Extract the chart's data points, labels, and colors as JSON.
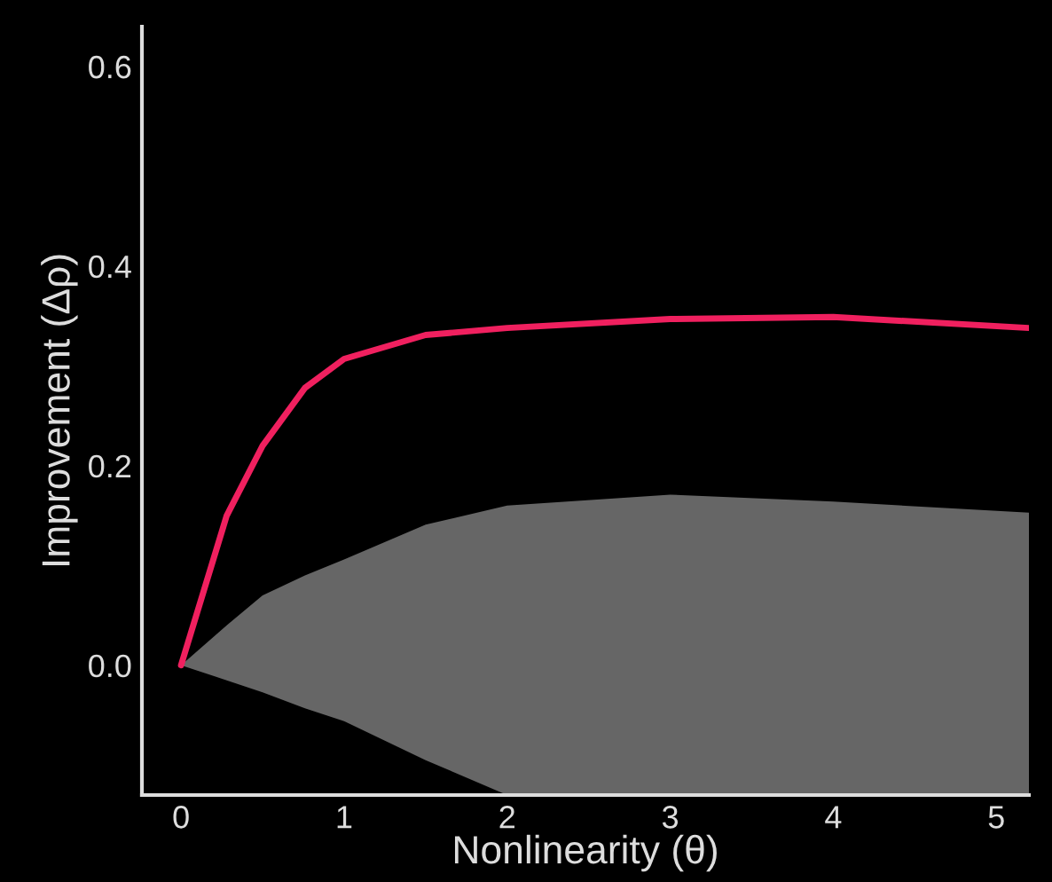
{
  "chart_data": {
    "type": "line",
    "xlabel": "Nonlinearity (θ)",
    "ylabel": "Improvement (Δρ)",
    "xlim": [
      -0.24,
      5.2
    ],
    "ylim": [
      -0.13,
      0.64
    ],
    "xticks": [
      0,
      1,
      2,
      3,
      4,
      5
    ],
    "yticks": [
      {
        "value": 0,
        "label": "0.0"
      },
      0.2,
      0.4,
      0.6
    ],
    "grid": false,
    "legend": false,
    "series": [
      {
        "color": "#f0205f",
        "x": [
          0,
          0.28,
          0.5,
          0.76,
          1,
          1.5,
          2,
          3,
          4,
          5.2
        ],
        "values": [
          0,
          0.15,
          0.22,
          0.278,
          0.307,
          0.331,
          0.338,
          0.347,
          0.349,
          0.338
        ],
        "lower": [
          0,
          -0.015,
          -0.027,
          -0.043,
          -0.056,
          -0.095,
          -0.13,
          -0.13,
          -0.13,
          -0.13
        ],
        "upper": [
          0,
          0.04,
          0.07,
          0.09,
          0.106,
          0.141,
          0.16,
          0.171,
          0.164,
          0.153
        ]
      }
    ]
  }
}
